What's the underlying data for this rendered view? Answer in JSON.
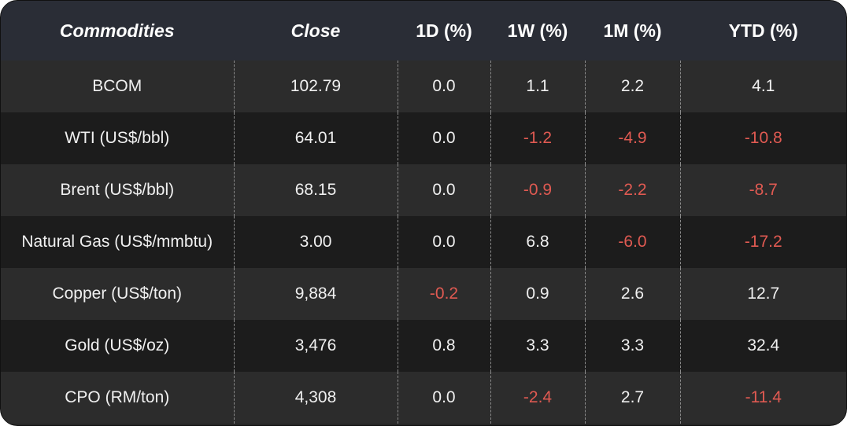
{
  "table": {
    "headers": [
      "Commodities",
      "Close",
      "1D (%)",
      "1W (%)",
      "1M (%)",
      "YTD (%)"
    ],
    "rows": [
      {
        "name": "BCOM",
        "close": "102.79",
        "d1": "0.0",
        "w1": "1.1",
        "m1": "2.2",
        "ytd": "4.1"
      },
      {
        "name": "WTI (US$/bbl)",
        "close": "64.01",
        "d1": "0.0",
        "w1": "-1.2",
        "m1": "-4.9",
        "ytd": "-10.8"
      },
      {
        "name": "Brent (US$/bbl)",
        "close": "68.15",
        "d1": "0.0",
        "w1": "-0.9",
        "m1": "-2.2",
        "ytd": "-8.7"
      },
      {
        "name": "Natural Gas (US$/mmbtu)",
        "close": "3.00",
        "d1": "0.0",
        "w1": "6.8",
        "m1": "-6.0",
        "ytd": "-17.2"
      },
      {
        "name": "Copper (US$/ton)",
        "close": "9,884",
        "d1": "-0.2",
        "w1": "0.9",
        "m1": "2.6",
        "ytd": "12.7"
      },
      {
        "name": "Gold (US$/oz)",
        "close": "3,476",
        "d1": "0.8",
        "w1": "3.3",
        "m1": "3.3",
        "ytd": "32.4"
      },
      {
        "name": "CPO (RM/ton)",
        "close": "4,308",
        "d1": "0.0",
        "w1": "-2.4",
        "m1": "2.7",
        "ytd": "-11.4"
      }
    ]
  },
  "colors": {
    "negative": "#e05a52",
    "header_bg": "#2a2d36",
    "row_odd": "#2c2c2c",
    "row_even": "#1c1c1c"
  }
}
